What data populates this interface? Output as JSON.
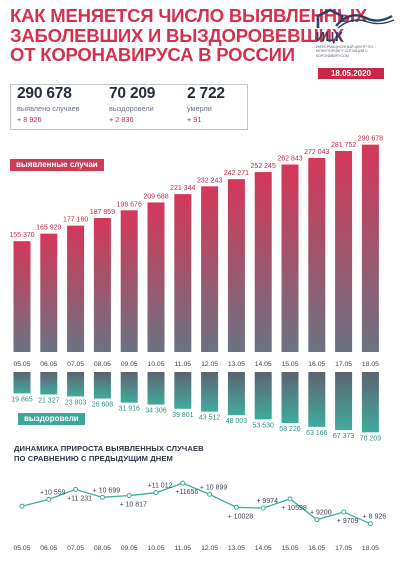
{
  "title_lines": [
    "КАК МЕНЯЕТСЯ ЧИСЛО ВЫЯВЛЕННЫХ",
    "ЗАБОЛЕВШИХ И ВЫЗДОРОВЕВШИХ",
    "ОТ КОРОНАВИРУСА В РОССИИ"
  ],
  "logo": {
    "name": "ИЦК",
    "subtitle": "ИНФОРМАЦИОННЫЙ ЦЕНТР ПО МОНИТОРИНГУ СИТУАЦИИ С КОРОНАВИРУСОМ",
    "icon": "wave-roof-logo-icon"
  },
  "date": "18.05.2020",
  "stats": [
    {
      "value": "290 678",
      "label": "выявлено случаев",
      "delta": "+ 8 926"
    },
    {
      "value": "70 209",
      "label": "выздоровели",
      "delta": "+ 2 836"
    },
    {
      "value": "2 722",
      "label": "умерли",
      "delta": "+ 91"
    }
  ],
  "tags": {
    "cases": "выявленные случаи",
    "recovered": "выздоровели"
  },
  "subtitle_lines": [
    "ДИНАМИКА ПРИРОСТА ВЫЯВЛЕННЫХ СЛУЧАЕВ",
    "ПО СРАВНЕНИЮ С ПРЕДЫДУЩИМ ДНЕМ"
  ],
  "colors": {
    "accent": "#c9274a",
    "cases_top": "#d23a58",
    "cases_bottom": "#6b7480",
    "recovered_light": "#3faa9c",
    "recovered_dark": "#5e6471",
    "line": "#3fae9b"
  },
  "chart_data": [
    {
      "type": "bar",
      "title": "выявленные случаи",
      "categories": [
        "05.05",
        "06.05",
        "07.05",
        "08.05",
        "09.05",
        "10.05",
        "11.05",
        "12.05",
        "13.05",
        "14.05",
        "15.05",
        "16.05",
        "17.05",
        "18.05"
      ],
      "values": [
        155370,
        165929,
        177160,
        187859,
        198676,
        209688,
        221344,
        232243,
        242271,
        252245,
        262843,
        272043,
        281752,
        290678
      ],
      "value_labels": [
        "155 370",
        "165 929",
        "177 160",
        "187 859",
        "198 676",
        "209 688",
        "221 344",
        "232 243",
        "242 271",
        "252 245",
        "262 843",
        "272 043",
        "281 752",
        "290 678"
      ],
      "ylim": [
        0,
        300000
      ]
    },
    {
      "type": "bar",
      "title": "выздоровели",
      "categories": [
        "05.05",
        "06.05",
        "07.05",
        "08.05",
        "09.05",
        "10.05",
        "11.05",
        "12.05",
        "13.05",
        "14.05",
        "15.05",
        "16.05",
        "17.05",
        "18.05"
      ],
      "values": [
        19865,
        21327,
        23803,
        26608,
        31916,
        34306,
        39801,
        43512,
        48003,
        53530,
        58226,
        63166,
        67373,
        70209
      ],
      "value_labels": [
        "19 865",
        "21 327",
        "23 803",
        "26 608",
        "31 916",
        "34 306",
        "39 801",
        "43 512",
        "48 003",
        "53 530",
        "58 226",
        "63 166",
        "67 373",
        "70 209"
      ],
      "ylim": [
        0,
        75000
      ],
      "orientation": "downward"
    },
    {
      "type": "line",
      "title": "ДИНАМИКА ПРИРОСТА ВЫЯВЛЕННЫХ СЛУЧАЕВ ПО СРАВНЕНИЮ С ПРЕДЫДУЩИМ ДНЕМ",
      "categories": [
        "05.05",
        "06.05",
        "07.05",
        "08.05",
        "09.05",
        "10.05",
        "11.05",
        "12.05",
        "13.05",
        "14.05",
        "15.05",
        "16.05",
        "17.05",
        "18.05"
      ],
      "values": [
        10102,
        10559,
        11231,
        10699,
        10817,
        11012,
        11656,
        10899,
        10028,
        9974,
        10598,
        9200,
        9709,
        8926
      ],
      "value_labels": [
        "",
        "+10 559",
        "+11 231",
        "+ 10 699",
        "+ 10 817",
        "+11 012",
        "+11656",
        "+ 10 899",
        "+ 10028",
        "+ 9974",
        "+ 10598",
        "+ 9200",
        "+ 9709",
        "+ 8 926"
      ],
      "ylim": [
        8500,
        12000
      ]
    }
  ]
}
